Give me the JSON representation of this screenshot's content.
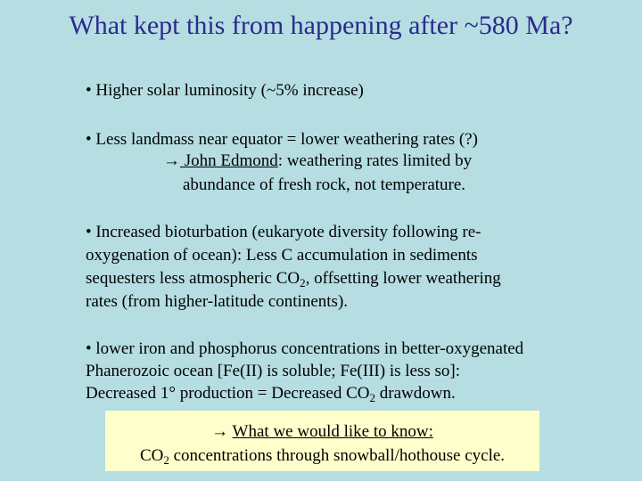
{
  "title": "What kept this from happening after ~580 Ma?",
  "bullet1": "• Higher solar luminosity (~5% increase)",
  "bullet2": {
    "line1": "• Less landmass near equator = lower weathering rates (?)",
    "arrow": "→",
    "person": " John Edmond",
    "line2": ": weathering rates limited by",
    "line3": "abundance of fresh rock, not temperature."
  },
  "bullet3": {
    "line1": "• Increased bioturbation (eukaryote diversity following re-",
    "line2": "oxygenation of ocean):  Less C accumulation in sediments",
    "line3a": "sequesters less atmospheric CO",
    "line3sub": "2",
    "line3b": ", offsetting lower weathering",
    "line4": "rates (from higher-latitude continents)."
  },
  "bullet4": {
    "line1": "• lower iron and phosphorus concentrations in better-oxygenated",
    "line2": "Phanerozoic ocean [Fe(II) is soluble; Fe(III) is less so]:",
    "line3a": "Decreased 1° production = Decreased CO",
    "line3sub": "2",
    "line3b": " drawdown."
  },
  "box": {
    "arrow": "→ ",
    "heading": "What we would like to know:",
    "line2a": "CO",
    "line2sub": "2",
    "line2b": " concentrations through snowball/hothouse cycle."
  }
}
